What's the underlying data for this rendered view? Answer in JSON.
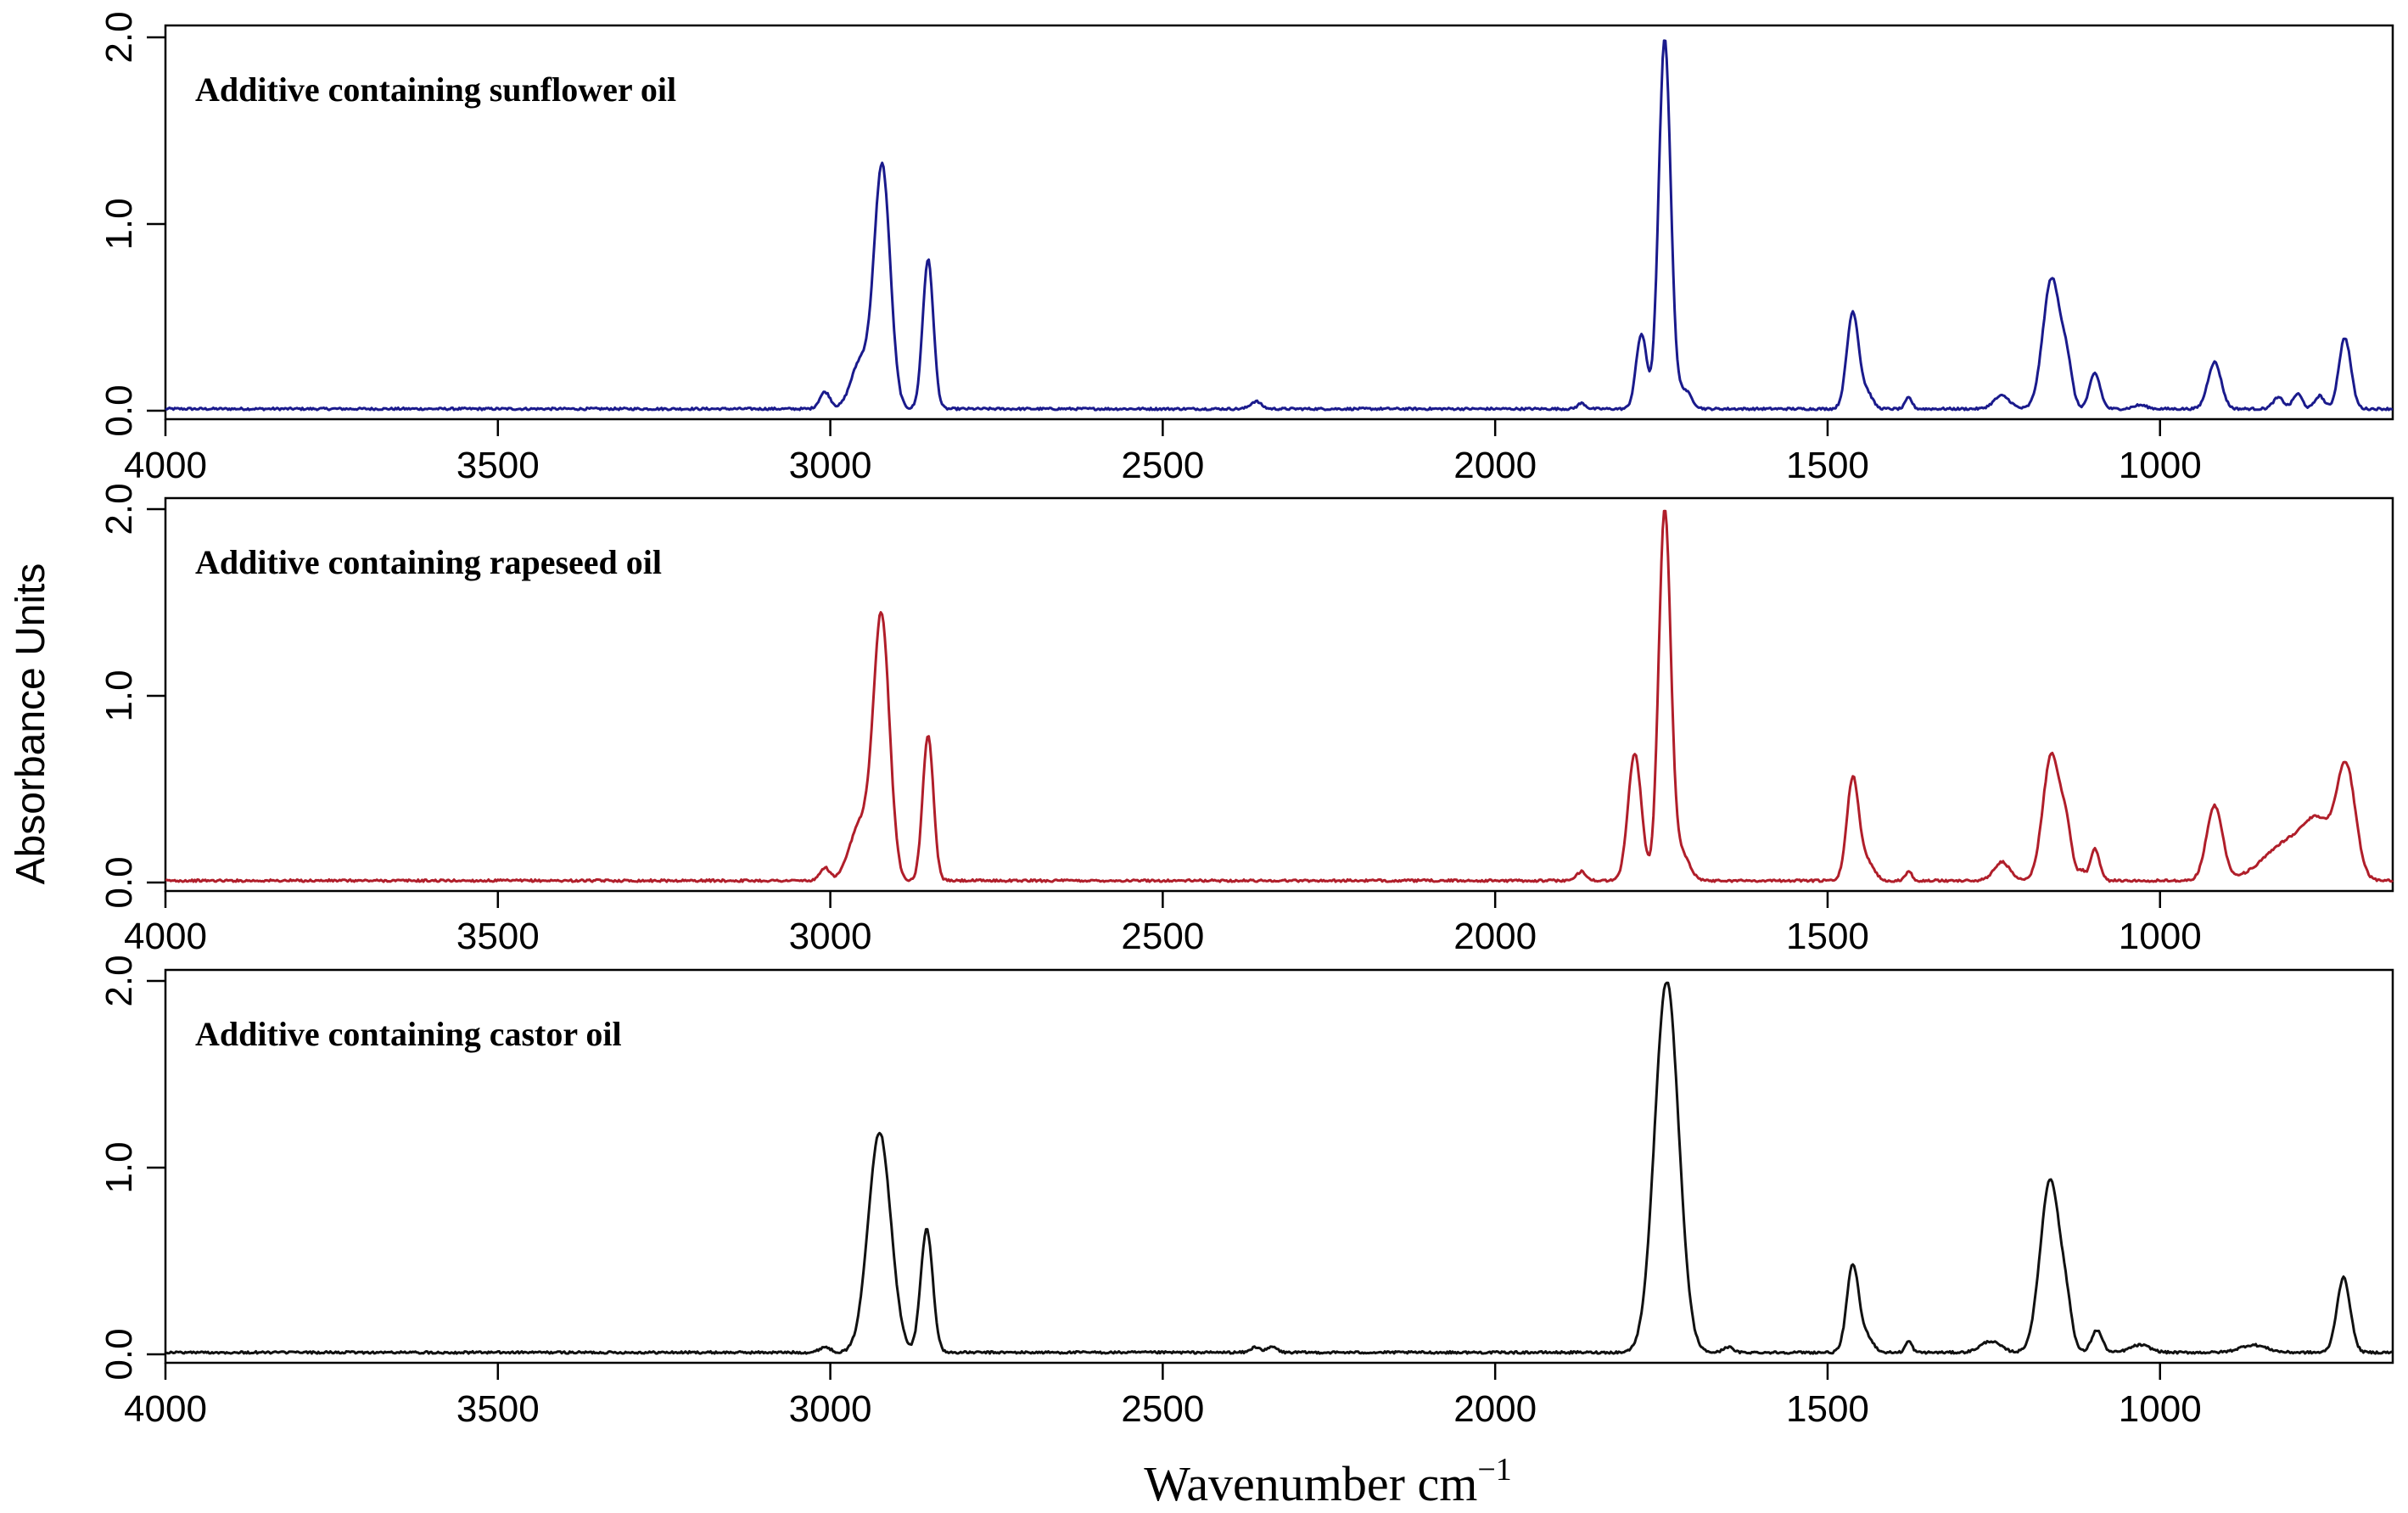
{
  "chart_data": {
    "type": "line",
    "ylabel": "Absorbance Units",
    "xlabel": "Wavenumber cm",
    "xlabel_superscript": "−1",
    "xlim": [
      4000,
      650
    ],
    "ylim": [
      0,
      2.0
    ],
    "xticks": [
      "4000",
      "3500",
      "3000",
      "2500",
      "2000",
      "1500",
      "1000"
    ],
    "yticks": [
      "0.0",
      "1.0",
      "2.0"
    ],
    "panels": [
      {
        "title": "Additive containing sunflower oil",
        "color": "#1a1a8c",
        "baseline": 0.01,
        "peaks": [
          {
            "x": 3008,
            "h": 0.09,
            "w": 8
          },
          {
            "x": 2955,
            "h": 0.25,
            "w": 14
          },
          {
            "x": 2922,
            "h": 1.3,
            "w": 12
          },
          {
            "x": 2853,
            "h": 0.8,
            "w": 8
          },
          {
            "x": 2360,
            "h": 0.04,
            "w": 8
          },
          {
            "x": 1870,
            "h": 0.03,
            "w": 6
          },
          {
            "x": 1780,
            "h": 0.4,
            "w": 8
          },
          {
            "x": 1745,
            "h": 1.98,
            "w": 9
          },
          {
            "x": 1715,
            "h": 0.1,
            "w": 10
          },
          {
            "x": 1462,
            "h": 0.52,
            "w": 9
          },
          {
            "x": 1440,
            "h": 0.08,
            "w": 8
          },
          {
            "x": 1378,
            "h": 0.06,
            "w": 5
          },
          {
            "x": 1238,
            "h": 0.07,
            "w": 12
          },
          {
            "x": 1163,
            "h": 0.7,
            "w": 13
          },
          {
            "x": 1140,
            "h": 0.2,
            "w": 8
          },
          {
            "x": 1098,
            "h": 0.19,
            "w": 8
          },
          {
            "x": 1030,
            "h": 0.02,
            "w": 10
          },
          {
            "x": 918,
            "h": 0.25,
            "w": 10
          },
          {
            "x": 822,
            "h": 0.06,
            "w": 8
          },
          {
            "x": 793,
            "h": 0.08,
            "w": 7
          },
          {
            "x": 760,
            "h": 0.07,
            "w": 7
          },
          {
            "x": 722,
            "h": 0.38,
            "w": 9
          }
        ]
      },
      {
        "title": "Additive containing rapeseed oil",
        "color": "#b01e2a",
        "baseline": 0.01,
        "peaks": [
          {
            "x": 3008,
            "h": 0.07,
            "w": 7
          },
          {
            "x": 2955,
            "h": 0.3,
            "w": 16
          },
          {
            "x": 2923,
            "h": 1.4,
            "w": 12
          },
          {
            "x": 2853,
            "h": 0.78,
            "w": 8
          },
          {
            "x": 1870,
            "h": 0.05,
            "w": 7
          },
          {
            "x": 1790,
            "h": 0.68,
            "w": 10
          },
          {
            "x": 1745,
            "h": 1.98,
            "w": 9
          },
          {
            "x": 1720,
            "h": 0.15,
            "w": 12
          },
          {
            "x": 1462,
            "h": 0.55,
            "w": 9
          },
          {
            "x": 1440,
            "h": 0.1,
            "w": 10
          },
          {
            "x": 1378,
            "h": 0.05,
            "w": 5
          },
          {
            "x": 1238,
            "h": 0.1,
            "w": 12
          },
          {
            "x": 1163,
            "h": 0.68,
            "w": 13
          },
          {
            "x": 1140,
            "h": 0.22,
            "w": 8
          },
          {
            "x": 1098,
            "h": 0.17,
            "w": 7
          },
          {
            "x": 1118,
            "h": 0.05,
            "w": 5
          },
          {
            "x": 918,
            "h": 0.4,
            "w": 12
          },
          {
            "x": 800,
            "h": 0.22,
            "w": 40
          },
          {
            "x": 760,
            "h": 0.2,
            "w": 20
          },
          {
            "x": 720,
            "h": 0.58,
            "w": 14
          }
        ]
      },
      {
        "title": "Additive containing castor oil",
        "color": "#111111",
        "baseline": 0.01,
        "peaks": [
          {
            "x": 3008,
            "h": 0.03,
            "w": 8
          },
          {
            "x": 2926,
            "h": 1.18,
            "w": 17
          },
          {
            "x": 2855,
            "h": 0.66,
            "w": 9
          },
          {
            "x": 2360,
            "h": 0.03,
            "w": 7
          },
          {
            "x": 2335,
            "h": 0.03,
            "w": 7
          },
          {
            "x": 1742,
            "h": 1.99,
            "w": 18
          },
          {
            "x": 1650,
            "h": 0.03,
            "w": 7
          },
          {
            "x": 1462,
            "h": 0.47,
            "w": 9
          },
          {
            "x": 1440,
            "h": 0.08,
            "w": 9
          },
          {
            "x": 1378,
            "h": 0.06,
            "w": 5
          },
          {
            "x": 1255,
            "h": 0.06,
            "w": 15
          },
          {
            "x": 1165,
            "h": 0.93,
            "w": 15
          },
          {
            "x": 1140,
            "h": 0.15,
            "w": 8
          },
          {
            "x": 1095,
            "h": 0.12,
            "w": 8
          },
          {
            "x": 1030,
            "h": 0.04,
            "w": 15
          },
          {
            "x": 860,
            "h": 0.04,
            "w": 20
          },
          {
            "x": 724,
            "h": 0.4,
            "w": 10
          }
        ]
      }
    ]
  }
}
